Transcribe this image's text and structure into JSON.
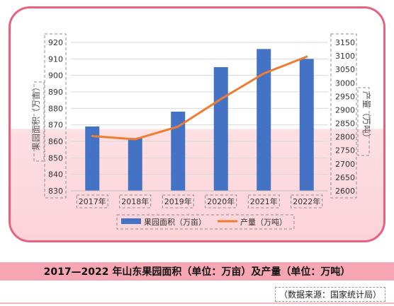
{
  "caption": "2017—2022 年山东果园面积（单位：万亩）及产量（单位：万吨）",
  "source": "（数据来源：国家统计局）",
  "chart_data": {
    "type": "bar",
    "categories": [
      "2017年",
      "2018年",
      "2019年",
      "2020年",
      "2021年",
      "2022年"
    ],
    "series": [
      {
        "name": "果园面积（万亩）",
        "type": "bar",
        "axis": "left",
        "color": "#4472c4",
        "values": [
          869,
          862,
          878,
          905,
          916,
          910
        ]
      },
      {
        "name": "产量（万吨）",
        "type": "line",
        "axis": "right",
        "color": "#ed7d31",
        "values": [
          2803,
          2791,
          2838,
          2940,
          3035,
          3097
        ]
      }
    ],
    "ylabel_left": "果园面积（万亩）",
    "ylabel_right": "产量（万吨）",
    "ylim_left": [
      830,
      920
    ],
    "yticks_left": [
      "830",
      "840",
      "850",
      "860",
      "870",
      "880",
      "890",
      "900",
      "910",
      "920"
    ],
    "ylim_right": [
      2600,
      3150
    ],
    "yticks_right": [
      "2600",
      "2650",
      "2700",
      "2750",
      "2800",
      "2850",
      "2900",
      "2950",
      "3000",
      "3050",
      "3100",
      "3150"
    ],
    "grid": true,
    "legend_position": "bottom"
  }
}
